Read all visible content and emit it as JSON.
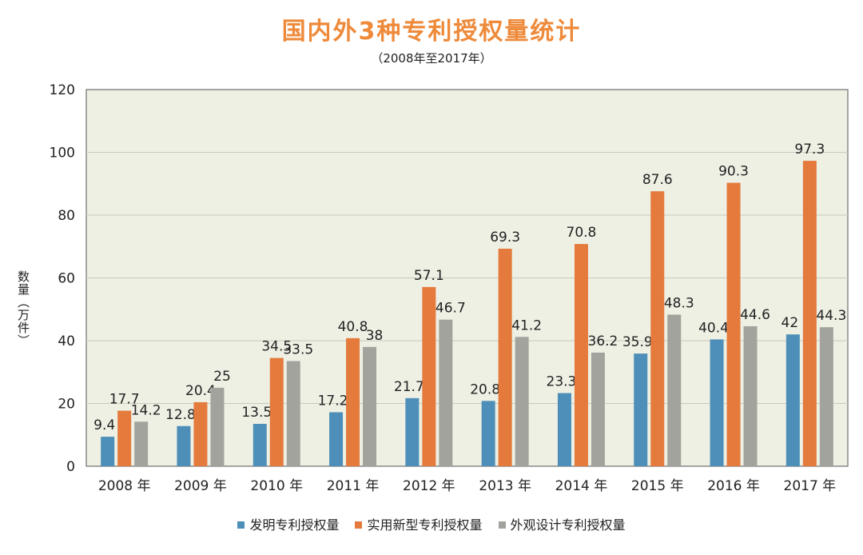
{
  "chart_data": {
    "type": "bar",
    "title": "国内外3种专利授权量统计",
    "subtitle": "（2008年至2017年）",
    "ylabel": "数量（万件）",
    "xlabel": "",
    "ylim": [
      0,
      120
    ],
    "yticks": [
      0,
      20,
      40,
      60,
      80,
      100,
      120
    ],
    "grid": true,
    "legend_position": "bottom",
    "categories": [
      "2008 年",
      "2009 年",
      "2010 年",
      "2011 年",
      "2012 年",
      "2013 年",
      "2014 年",
      "2015 年",
      "2016 年",
      "2017 年"
    ],
    "series": [
      {
        "name": "发明专利授权量",
        "color": "#4d8fb8",
        "values": [
          9.4,
          12.8,
          13.5,
          17.2,
          21.7,
          20.8,
          23.3,
          35.9,
          40.4,
          42
        ]
      },
      {
        "name": "实用新型专利授权量",
        "color": "#e57a3d",
        "values": [
          17.7,
          20.4,
          34.5,
          40.8,
          57.1,
          69.3,
          70.8,
          87.6,
          90.3,
          97.3
        ]
      },
      {
        "name": "外观设计专利授权量",
        "color": "#a3a39e",
        "values": [
          14.2,
          25,
          33.5,
          38,
          46.7,
          41.2,
          36.2,
          48.3,
          44.6,
          44.3
        ]
      }
    ],
    "plot_background": "#eef0e4"
  }
}
